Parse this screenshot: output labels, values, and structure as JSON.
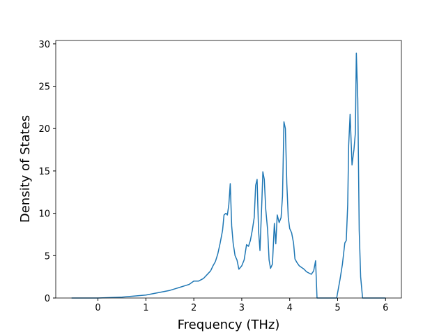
{
  "chart_data": {
    "type": "line",
    "xlabel": "Frequency (THz)",
    "ylabel": "Density of States",
    "x": [
      -0.55,
      0,
      0.5,
      1,
      1.5,
      1.9,
      2.0,
      2.1,
      2.2,
      2.3,
      2.35,
      2.4,
      2.45,
      2.5,
      2.55,
      2.6,
      2.63,
      2.67,
      2.7,
      2.73,
      2.76,
      2.79,
      2.82,
      2.86,
      2.9,
      2.94,
      3.0,
      3.05,
      3.1,
      3.14,
      3.18,
      3.22,
      3.26,
      3.29,
      3.32,
      3.35,
      3.38,
      3.42,
      3.44,
      3.47,
      3.5,
      3.54,
      3.57,
      3.6,
      3.64,
      3.68,
      3.71,
      3.74,
      3.78,
      3.82,
      3.85,
      3.88,
      3.91,
      3.94,
      3.97,
      4.0,
      4.04,
      4.08,
      4.11,
      4.15,
      4.2,
      4.3,
      4.35,
      4.45,
      4.5,
      4.54,
      4.57,
      4.98,
      5.05,
      5.1,
      5.15,
      5.18,
      5.21,
      5.23,
      5.26,
      5.3,
      5.34,
      5.37,
      5.39,
      5.42,
      5.45,
      5.48,
      5.52,
      6.0
    ],
    "series": [
      {
        "color": "#1f77b4",
        "values": [
          0,
          0,
          0.1,
          0.35,
          0.9,
          1.6,
          2.0,
          2.0,
          2.3,
          2.9,
          3.2,
          3.8,
          4.3,
          5.2,
          6.5,
          8.0,
          9.8,
          10.0,
          9.8,
          11.0,
          13.5,
          8.5,
          6.5,
          5.0,
          4.5,
          3.4,
          3.8,
          4.5,
          6.3,
          6.1,
          6.8,
          8.0,
          9.5,
          13.3,
          14.0,
          8.0,
          5.6,
          11.5,
          14.9,
          14.0,
          10.5,
          8.0,
          4.5,
          3.5,
          4.0,
          8.8,
          6.4,
          9.8,
          8.9,
          9.5,
          12.0,
          20.8,
          20.0,
          13.5,
          9.5,
          8.2,
          7.7,
          6.5,
          4.6,
          4.2,
          3.8,
          3.4,
          3.1,
          2.8,
          3.2,
          4.4,
          0,
          0,
          2.2,
          4.0,
          6.5,
          6.8,
          11.0,
          18.0,
          21.7,
          15.7,
          17.5,
          19.5,
          28.9,
          23.5,
          8.0,
          2.5,
          0,
          0
        ]
      }
    ],
    "xlim": [
      -0.88,
      6.33
    ],
    "ylim": [
      0,
      30.4
    ],
    "xticks": [
      0,
      1,
      2,
      3,
      4,
      5,
      6
    ],
    "yticks": [
      0,
      5,
      10,
      15,
      20,
      25,
      30
    ]
  }
}
